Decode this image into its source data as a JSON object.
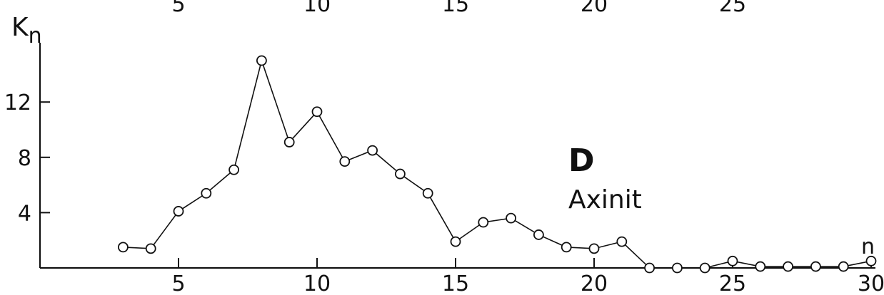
{
  "chart_data": {
    "type": "line",
    "title": "",
    "panel_label": "D",
    "mineral_label": "Axinit",
    "ylabel": "Kn",
    "xlabel": "n",
    "x_ticks": [
      5,
      10,
      15,
      20,
      25,
      30
    ],
    "y_ticks": [
      4,
      8,
      12
    ],
    "top_tick_labels": [
      5,
      10,
      15,
      20,
      25
    ],
    "xlim": [
      0,
      30.5
    ],
    "ylim": [
      0,
      15.5
    ],
    "grid": false,
    "series": [
      {
        "marker": "open-circle",
        "x": [
          3,
          4,
          5,
          6,
          7,
          8,
          9,
          10,
          11,
          12,
          13,
          14,
          15,
          16,
          17,
          18,
          19,
          20,
          21,
          22,
          23,
          24,
          25,
          26,
          27,
          28,
          29,
          30
        ],
        "y": [
          1.5,
          1.4,
          4.1,
          5.4,
          7.1,
          15.0,
          9.1,
          11.3,
          7.7,
          8.5,
          6.8,
          5.4,
          1.9,
          3.3,
          3.6,
          2.4,
          1.5,
          1.4,
          1.9,
          0.0,
          0.0,
          0.0,
          0.5,
          0.1,
          0.1,
          0.1,
          0.1,
          0.5
        ]
      }
    ]
  }
}
